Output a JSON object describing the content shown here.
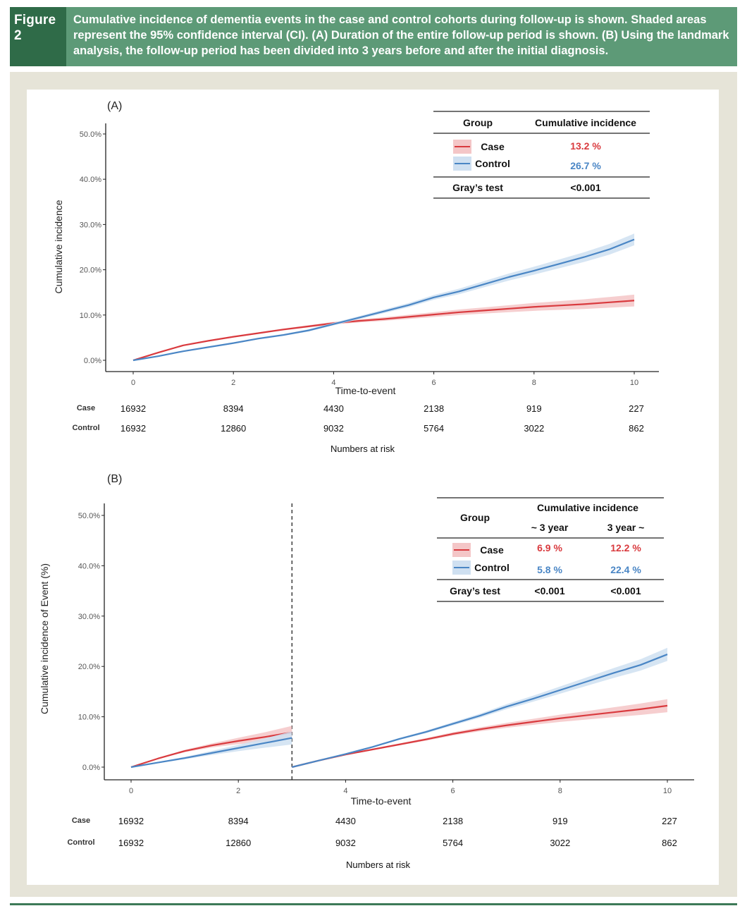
{
  "figure": {
    "label": "Figure 2",
    "caption": "Cumulative incidence of dementia events in the case and control cohorts during follow-up is shown. Shaded areas represent the 95% confidence interval (CI). (A) Duration of the entire follow-up period is shown. (B) Using the landmark analysis, the follow-up period has been divided into 3 years before and after the initial diagnosis."
  },
  "colors": {
    "case": "#d93a3e",
    "control": "#4a86c5",
    "case_band": "#f4c6c7",
    "control_band": "#cfe0f1",
    "header_dark": "#2f6b48",
    "header_light": "#5d9a77"
  },
  "chart_data": [
    {
      "panel": "(A)",
      "type": "line",
      "xlabel": "Time-to-event",
      "ylabel": "Cumulative incidence",
      "xlim": [
        0,
        10
      ],
      "ylim": [
        0,
        50
      ],
      "x_ticks": [
        "0",
        "2",
        "4",
        "6",
        "8",
        "10"
      ],
      "y_ticks": [
        "0.0%",
        "10.0%",
        "20.0%",
        "30.0%",
        "40.0%",
        "50.0%"
      ],
      "series": [
        {
          "name": "Case",
          "color": "#d93a3e",
          "x": [
            0,
            0.5,
            1,
            1.5,
            2,
            2.5,
            3,
            3.5,
            4,
            4.5,
            5,
            5.5,
            6,
            6.5,
            7,
            7.5,
            8,
            8.5,
            9,
            9.5,
            10
          ],
          "y": [
            0,
            1.7,
            3.3,
            4.3,
            5.2,
            6.0,
            6.8,
            7.5,
            8.2,
            8.7,
            9.1,
            9.6,
            10.1,
            10.6,
            11.0,
            11.4,
            11.8,
            12.1,
            12.4,
            12.8,
            13.2
          ]
        },
        {
          "name": "Control",
          "color": "#4a86c5",
          "x": [
            0,
            0.5,
            1,
            1.5,
            2,
            2.5,
            3,
            3.5,
            4,
            4.5,
            5,
            5.5,
            6,
            6.5,
            7,
            7.5,
            8,
            8.5,
            9,
            9.5,
            10
          ],
          "y": [
            0,
            0.9,
            2.0,
            2.9,
            3.8,
            4.8,
            5.6,
            6.6,
            8.0,
            9.4,
            10.8,
            12.2,
            13.9,
            15.2,
            16.8,
            18.4,
            19.8,
            21.3,
            22.8,
            24.5,
            26.7
          ]
        }
      ],
      "table": {
        "headers": [
          "Group",
          "Cumulative incidence"
        ],
        "rows": [
          {
            "group": "Case",
            "value": "13.2 %"
          },
          {
            "group": "Control",
            "value": "26.7 %"
          }
        ],
        "test_label": "Gray’s test",
        "test_value": "<0.001"
      },
      "at_risk": {
        "title": "Numbers at risk",
        "rows": [
          {
            "label": "Case",
            "values": [
              "16932",
              "8394",
              "4430",
              "2138",
              "919",
              "227"
            ]
          },
          {
            "label": "Control",
            "values": [
              "16932",
              "12860",
              "9032",
              "5764",
              "3022",
              "862"
            ]
          }
        ]
      }
    },
    {
      "panel": "(B)",
      "type": "line",
      "xlabel": "Time-to-event",
      "ylabel": "Cumulative incidence of Event (%)",
      "xlim": [
        0,
        10
      ],
      "ylim": [
        0,
        50
      ],
      "landmark_x": 3,
      "x_ticks": [
        "0",
        "2",
        "4",
        "6",
        "8",
        "10"
      ],
      "y_ticks": [
        "0.0%",
        "10.0%",
        "20.0%",
        "30.0%",
        "40.0%",
        "50.0%"
      ],
      "series": [
        {
          "name": "Case",
          "segment": "before",
          "color": "#d93a3e",
          "x": [
            0,
            0.5,
            1,
            1.5,
            2,
            2.5,
            3
          ],
          "y": [
            0,
            1.7,
            3.2,
            4.3,
            5.2,
            6.0,
            6.9
          ]
        },
        {
          "name": "Control",
          "segment": "before",
          "color": "#4a86c5",
          "x": [
            0,
            0.5,
            1,
            1.5,
            2,
            2.5,
            3
          ],
          "y": [
            0,
            0.9,
            1.8,
            2.8,
            3.8,
            4.8,
            5.8
          ]
        },
        {
          "name": "Case",
          "segment": "after",
          "color": "#d93a3e",
          "x": [
            3,
            3.5,
            4,
            4.5,
            5,
            5.5,
            6,
            6.5,
            7,
            7.5,
            8,
            8.5,
            9,
            9.5,
            10
          ],
          "y": [
            0,
            1.3,
            2.5,
            3.5,
            4.5,
            5.5,
            6.6,
            7.5,
            8.3,
            9.0,
            9.7,
            10.3,
            10.9,
            11.5,
            12.2
          ]
        },
        {
          "name": "Control",
          "segment": "after",
          "color": "#4a86c5",
          "x": [
            3,
            3.5,
            4,
            4.5,
            5,
            5.5,
            6,
            6.5,
            7,
            7.5,
            8,
            8.5,
            9,
            9.5,
            10
          ],
          "y": [
            0,
            1.3,
            2.6,
            4.0,
            5.6,
            7.0,
            8.6,
            10.2,
            12.0,
            13.6,
            15.3,
            17.0,
            18.7,
            20.3,
            22.4
          ]
        }
      ],
      "table": {
        "headers": [
          "Group",
          "Cumulative incidence"
        ],
        "subheaders": [
          "~ 3 year",
          "3 year ~"
        ],
        "rows": [
          {
            "group": "Case",
            "before": "6.9 %",
            "after": "12.2 %"
          },
          {
            "group": "Control",
            "before": "5.8 %",
            "after": "22.4 %"
          }
        ],
        "test_label": "Gray’s test",
        "test_values": [
          "<0.001",
          "<0.001"
        ]
      },
      "at_risk": {
        "title": "Numbers at risk",
        "rows": [
          {
            "label": "Case",
            "values": [
              "16932",
              "8394",
              "4430",
              "2138",
              "919",
              "227"
            ]
          },
          {
            "label": "Control",
            "values": [
              "16932",
              "12860",
              "9032",
              "5764",
              "3022",
              "862"
            ]
          }
        ]
      }
    }
  ]
}
